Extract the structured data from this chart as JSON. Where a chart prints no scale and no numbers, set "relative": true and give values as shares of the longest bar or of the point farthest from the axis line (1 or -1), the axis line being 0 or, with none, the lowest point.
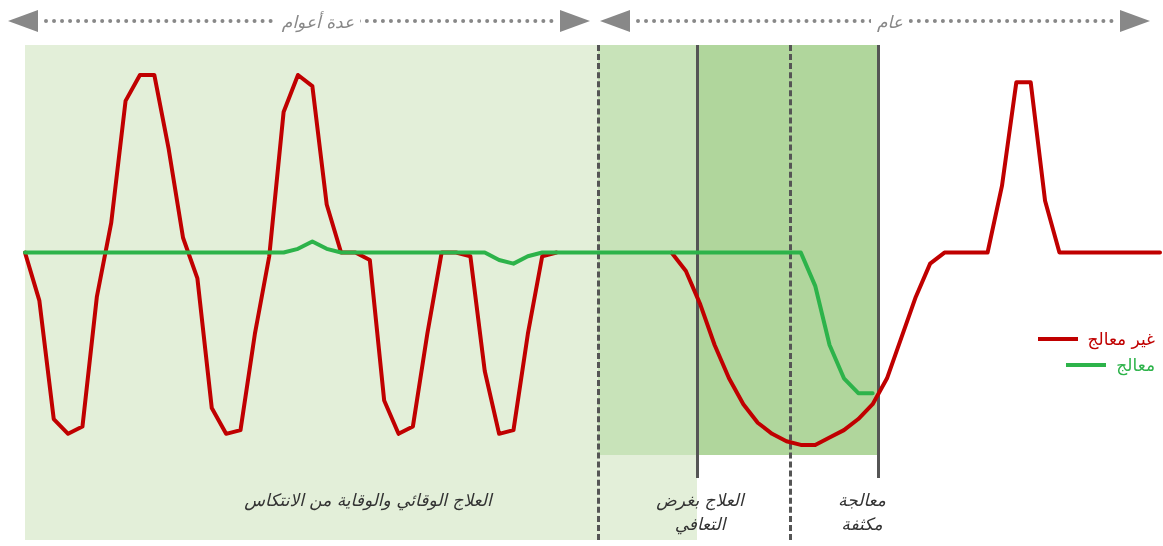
{
  "chart_data": {
    "type": "line",
    "relative": true,
    "tick_labels": false,
    "legend": "right",
    "marker": "none",
    "categories": [
      null,
      null,
      null,
      null,
      null,
      null,
      null,
      null,
      null,
      null,
      null,
      null,
      null,
      null,
      null,
      null,
      null,
      null,
      null,
      null,
      null,
      null,
      null,
      null,
      null,
      null,
      null,
      null,
      null,
      null,
      null,
      null,
      null,
      null,
      null,
      null,
      null,
      null,
      null,
      null,
      null,
      null,
      null,
      null,
      null,
      null,
      null,
      null,
      null,
      null,
      null,
      null,
      null,
      null,
      null,
      null,
      null,
      null,
      null,
      null,
      null,
      null,
      null,
      null,
      null,
      null,
      null,
      null,
      null,
      null,
      null,
      null,
      null,
      null,
      null,
      null,
      null,
      null,
      null,
      null
    ],
    "series": [
      {
        "name": "غير معالج",
        "color": "#c00000",
        "values": [
          0.52,
          0.39,
          0.07,
          0.03,
          0.05,
          0.4,
          0.6,
          0.93,
          1,
          1,
          0.8,
          0.56,
          0.45,
          0.1,
          0.03,
          0.04,
          0.3,
          0.51,
          0.9,
          1,
          0.97,
          0.65,
          0.52,
          0.52,
          0.5,
          0.12,
          0.03,
          0.05,
          0.3,
          0.52,
          0.52,
          0.51,
          0.2,
          0.03,
          0.04,
          0.3,
          0.51,
          0.52,
          null,
          null,
          null,
          null,
          null,
          null,
          null,
          0.52,
          0.47,
          0.38,
          0.27,
          0.18,
          0.11,
          0.06,
          0.03,
          0.01,
          0,
          0,
          0.02,
          0.04,
          0.07,
          0.11,
          0.18,
          0.29,
          0.4,
          0.49,
          0.52,
          0.52,
          0.52,
          0.52,
          0.7,
          0.98,
          0.98,
          0.66,
          0.52,
          0.52,
          0.52,
          0.52,
          0.52,
          0.52,
          0.52,
          0.52
        ]
      },
      {
        "name": "معالج",
        "color": "#2db34a",
        "values": [
          0.52,
          0.52,
          0.52,
          0.52,
          0.52,
          0.52,
          0.52,
          0.52,
          0.52,
          0.52,
          0.52,
          0.52,
          0.52,
          0.52,
          0.52,
          0.52,
          0.52,
          0.52,
          0.52,
          0.53,
          0.55,
          0.53,
          0.52,
          0.52,
          0.52,
          0.52,
          0.52,
          0.52,
          0.52,
          0.52,
          0.52,
          0.52,
          0.52,
          0.5,
          0.49,
          0.51,
          0.52,
          0.52,
          0.52,
          0.52,
          0.52,
          0.52,
          0.52,
          0.52,
          0.52,
          0.52,
          0.52,
          0.52,
          0.52,
          0.52,
          0.52,
          0.52,
          0.52,
          0.52,
          0.52,
          0.43,
          0.27,
          0.18,
          0.14,
          0.14,
          null,
          null,
          null,
          null,
          null,
          null,
          null,
          null,
          null,
          null,
          null,
          null,
          null,
          null,
          null,
          null,
          null,
          null,
          null,
          null
        ]
      }
    ],
    "annotations": [
      "عدة أعوام",
      "عام",
      "العلاج الوقائي والوقاية من الانتكاس",
      "العلاج بغرض التعافي",
      "معالجة مكثفة"
    ]
  }
}
